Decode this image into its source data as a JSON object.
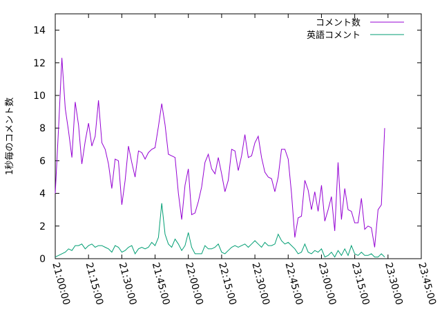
{
  "chart_data": {
    "type": "line",
    "ylabel": "1秒毎のコメント数",
    "ylim": [
      0,
      15
    ],
    "yticks": [
      0,
      2,
      4,
      6,
      8,
      10,
      12,
      14
    ],
    "xlim": [
      "21:00:00",
      "23:45:00"
    ],
    "xticks": [
      "21:00:00",
      "21:15:00",
      "21:30:00",
      "21:45:00",
      "22:00:00",
      "22:15:00",
      "22:30:00",
      "22:45:00",
      "23:00:00",
      "23:15:00",
      "23:30:00",
      "23:45:00"
    ],
    "grid": false,
    "legend_position": "top-right",
    "series": [
      {
        "name": "コメント数",
        "color": "#9400d3",
        "x": [
          "21:00:00",
          "21:01:30",
          "21:03:00",
          "21:04:30",
          "21:06:00",
          "21:07:30",
          "21:09:00",
          "21:10:30",
          "21:12:00",
          "21:13:30",
          "21:15:00",
          "21:16:30",
          "21:18:00",
          "21:19:30",
          "21:21:00",
          "21:22:30",
          "21:24:00",
          "21:25:30",
          "21:27:00",
          "21:28:30",
          "21:30:00",
          "21:31:30",
          "21:33:00",
          "21:34:30",
          "21:36:00",
          "21:37:30",
          "21:39:00",
          "21:40:30",
          "21:42:00",
          "21:43:30",
          "21:45:00",
          "21:46:30",
          "21:48:00",
          "21:49:30",
          "21:51:00",
          "21:52:30",
          "21:54:00",
          "21:55:30",
          "21:57:00",
          "21:58:30",
          "22:00:00",
          "22:01:30",
          "22:03:00",
          "22:04:30",
          "22:06:00",
          "22:07:30",
          "22:09:00",
          "22:10:30",
          "22:12:00",
          "22:13:30",
          "22:15:00",
          "22:16:30",
          "22:18:00",
          "22:19:30",
          "22:21:00",
          "22:22:30",
          "22:24:00",
          "22:25:30",
          "22:27:00",
          "22:28:30",
          "22:30:00",
          "22:31:30",
          "22:33:00",
          "22:34:30",
          "22:36:00",
          "22:37:30",
          "22:39:00",
          "22:40:30",
          "22:42:00",
          "22:43:30",
          "22:45:00",
          "22:46:30",
          "22:48:00",
          "22:49:30",
          "22:51:00",
          "22:52:30",
          "22:54:00",
          "22:55:30",
          "22:57:00",
          "22:58:30",
          "23:00:00",
          "23:01:30",
          "23:03:00",
          "23:04:30",
          "23:06:00",
          "23:07:30",
          "23:09:00",
          "23:10:30",
          "23:12:00",
          "23:13:30",
          "23:15:00",
          "23:16:30",
          "23:18:00",
          "23:19:30",
          "23:21:00",
          "23:22:30",
          "23:24:00",
          "23:25:30",
          "23:27:00",
          "23:28:30"
        ],
        "values": [
          4.0,
          8.0,
          12.3,
          9.2,
          7.8,
          6.2,
          9.6,
          8.2,
          5.8,
          7.2,
          8.3,
          6.9,
          7.5,
          9.7,
          7.1,
          6.7,
          5.8,
          4.3,
          6.1,
          6.0,
          3.3,
          4.8,
          6.9,
          5.9,
          5.0,
          6.6,
          6.5,
          6.1,
          6.5,
          6.7,
          6.8,
          8.1,
          9.5,
          8.2,
          6.4,
          6.3,
          6.2,
          4.0,
          2.4,
          4.5,
          5.5,
          2.7,
          2.8,
          3.5,
          4.4,
          5.9,
          6.4,
          5.5,
          5.2,
          6.2,
          5.2,
          4.1,
          4.8,
          6.7,
          6.6,
          5.4,
          6.3,
          7.6,
          6.2,
          6.3,
          7.1,
          7.5,
          6.2,
          5.3,
          5.0,
          4.9,
          4.1,
          5.0,
          6.7,
          6.7,
          6.1,
          4.0,
          1.3,
          2.5,
          2.6,
          4.8,
          4.2,
          3.0,
          4.1,
          2.9,
          4.5,
          2.3,
          3.0,
          3.8,
          1.7,
          5.9,
          2.4,
          4.3,
          3.0,
          2.9,
          2.2,
          2.2,
          3.7,
          1.8,
          2.0,
          1.9,
          0.7,
          3.0,
          3.3,
          8.0
        ]
      },
      {
        "name": "英語コメント",
        "color": "#009e73",
        "x": [
          "21:00:00",
          "21:01:30",
          "21:03:00",
          "21:04:30",
          "21:06:00",
          "21:07:30",
          "21:09:00",
          "21:10:30",
          "21:12:00",
          "21:13:30",
          "21:15:00",
          "21:16:30",
          "21:18:00",
          "21:19:30",
          "21:21:00",
          "21:22:30",
          "21:24:00",
          "21:25:30",
          "21:27:00",
          "21:28:30",
          "21:30:00",
          "21:31:30",
          "21:33:00",
          "21:34:30",
          "21:36:00",
          "21:37:30",
          "21:39:00",
          "21:40:30",
          "21:42:00",
          "21:43:30",
          "21:45:00",
          "21:46:30",
          "21:48:00",
          "21:49:30",
          "21:51:00",
          "21:52:30",
          "21:54:00",
          "21:55:30",
          "21:57:00",
          "21:58:30",
          "22:00:00",
          "22:01:30",
          "22:03:00",
          "22:04:30",
          "22:06:00",
          "22:07:30",
          "22:09:00",
          "22:10:30",
          "22:12:00",
          "22:13:30",
          "22:15:00",
          "22:16:30",
          "22:18:00",
          "22:19:30",
          "22:21:00",
          "22:22:30",
          "22:24:00",
          "22:25:30",
          "22:27:00",
          "22:28:30",
          "22:30:00",
          "22:31:30",
          "22:33:00",
          "22:34:30",
          "22:36:00",
          "22:37:30",
          "22:39:00",
          "22:40:30",
          "22:42:00",
          "22:43:30",
          "22:45:00",
          "22:46:30",
          "22:48:00",
          "22:49:30",
          "22:51:00",
          "22:52:30",
          "22:54:00",
          "22:55:30",
          "22:57:00",
          "22:58:30",
          "23:00:00",
          "23:01:30",
          "23:03:00",
          "23:04:30",
          "23:06:00",
          "23:07:30",
          "23:09:00",
          "23:10:30",
          "23:12:00",
          "23:13:30",
          "23:15:00",
          "23:16:30",
          "23:18:00",
          "23:19:30",
          "23:21:00",
          "23:22:30",
          "23:24:00",
          "23:25:30",
          "23:27:00",
          "23:28:30"
        ],
        "values": [
          0.1,
          0.2,
          0.3,
          0.4,
          0.6,
          0.5,
          0.8,
          0.8,
          0.9,
          0.6,
          0.8,
          0.9,
          0.7,
          0.8,
          0.8,
          0.7,
          0.6,
          0.4,
          0.8,
          0.7,
          0.4,
          0.5,
          0.7,
          0.8,
          0.3,
          0.6,
          0.7,
          0.6,
          0.7,
          1.0,
          0.8,
          1.3,
          3.4,
          1.5,
          0.9,
          0.7,
          1.2,
          0.9,
          0.5,
          0.8,
          1.6,
          0.7,
          0.3,
          0.3,
          0.3,
          0.8,
          0.6,
          0.6,
          0.7,
          0.9,
          0.4,
          0.3,
          0.5,
          0.7,
          0.8,
          0.7,
          0.8,
          0.9,
          0.7,
          0.9,
          1.1,
          0.9,
          0.7,
          1.0,
          0.8,
          0.8,
          0.9,
          1.5,
          1.1,
          0.9,
          1.0,
          0.8,
          0.6,
          0.3,
          0.4,
          0.9,
          0.4,
          0.3,
          0.5,
          0.4,
          0.6,
          0.1,
          0.2,
          0.4,
          0.1,
          0.5,
          0.2,
          0.6,
          0.2,
          0.8,
          0.3,
          0.2,
          0.4,
          0.2,
          0.2,
          0.3,
          0.1,
          0.1,
          0.3,
          0.1
        ]
      }
    ]
  }
}
